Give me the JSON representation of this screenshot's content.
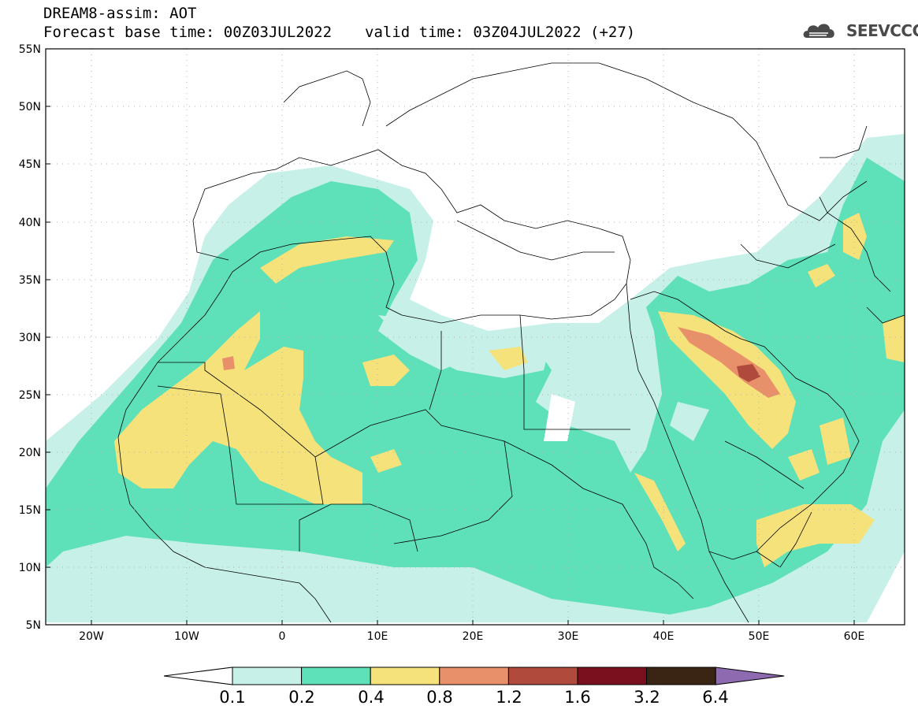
{
  "header": {
    "model_title": "DREAM8-assim: AOT",
    "base_time": "Forecast base time: 00Z03JUL2022",
    "valid_time": "valid time: 03Z04JUL2022 (+27)"
  },
  "logo": {
    "text": "SEEVCCC",
    "icon": "cloud-logo-icon"
  },
  "map": {
    "region": "North Africa, Europe and Middle East",
    "lat_labels": [
      "55N",
      "50N",
      "45N",
      "40N",
      "35N",
      "30N",
      "25N",
      "20N",
      "15N",
      "10N",
      "5N"
    ],
    "lon_labels": [
      "20W",
      "10W",
      "0",
      "10E",
      "20E",
      "30E",
      "40E",
      "50E",
      "60E"
    ],
    "lat_range": [
      5,
      55
    ],
    "lon_range": [
      -25,
      65
    ],
    "grid": "dotted"
  },
  "legend": {
    "labels": [
      "0.1",
      "0.2",
      "0.4",
      "0.8",
      "1.2",
      "1.6",
      "3.2",
      "6.4"
    ],
    "colors": [
      "#ffffff",
      "#c6f0e8",
      "#5ee0b8",
      "#f5e27a",
      "#e8906a",
      "#b04a3c",
      "#7a0f1e",
      "#3a2414",
      "#8e6bb0"
    ]
  }
}
